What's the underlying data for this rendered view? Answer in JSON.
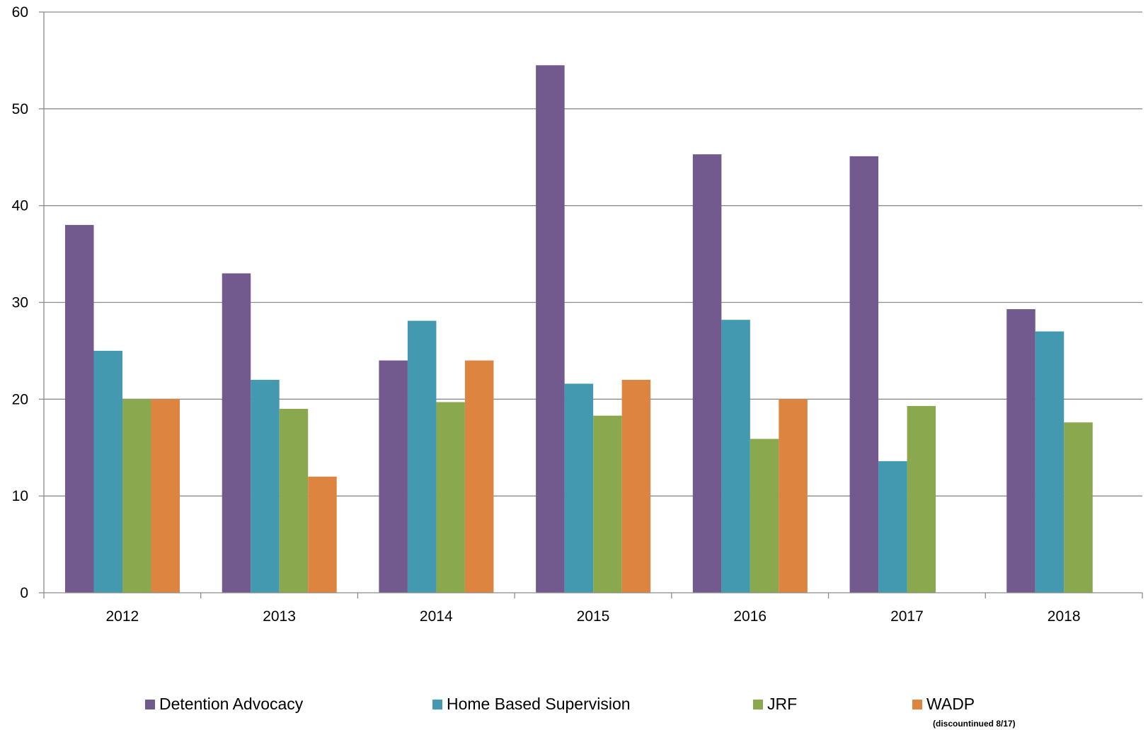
{
  "chart_data": {
    "type": "bar",
    "title": "",
    "xlabel": "",
    "ylabel": "",
    "categories": [
      "2012",
      "2013",
      "2014",
      "2015",
      "2016",
      "2017",
      "2018"
    ],
    "ylim": [
      0,
      60
    ],
    "yticks": [
      "0",
      "10",
      "20",
      "30",
      "40",
      "50",
      "60"
    ],
    "grid": true,
    "legend_position": "bottom",
    "series": [
      {
        "name": "Detention Advocacy",
        "color": "#725a8f",
        "values": [
          38,
          33,
          24,
          54.5,
          45.3,
          45.1,
          29.3
        ]
      },
      {
        "name": "Home Based Supervision",
        "color": "#4299b0",
        "values": [
          25,
          22,
          28.1,
          21.6,
          28.2,
          13.6,
          27
        ]
      },
      {
        "name": "JRF",
        "color": "#8aa84e",
        "values": [
          20,
          19,
          19.7,
          18.3,
          15.9,
          19.3,
          17.6
        ]
      },
      {
        "name": "WADP",
        "color": "#dd8540",
        "values": [
          20,
          12,
          24,
          22,
          20,
          null,
          null
        ]
      }
    ],
    "legend_note": "(discountinued 8/17)"
  }
}
